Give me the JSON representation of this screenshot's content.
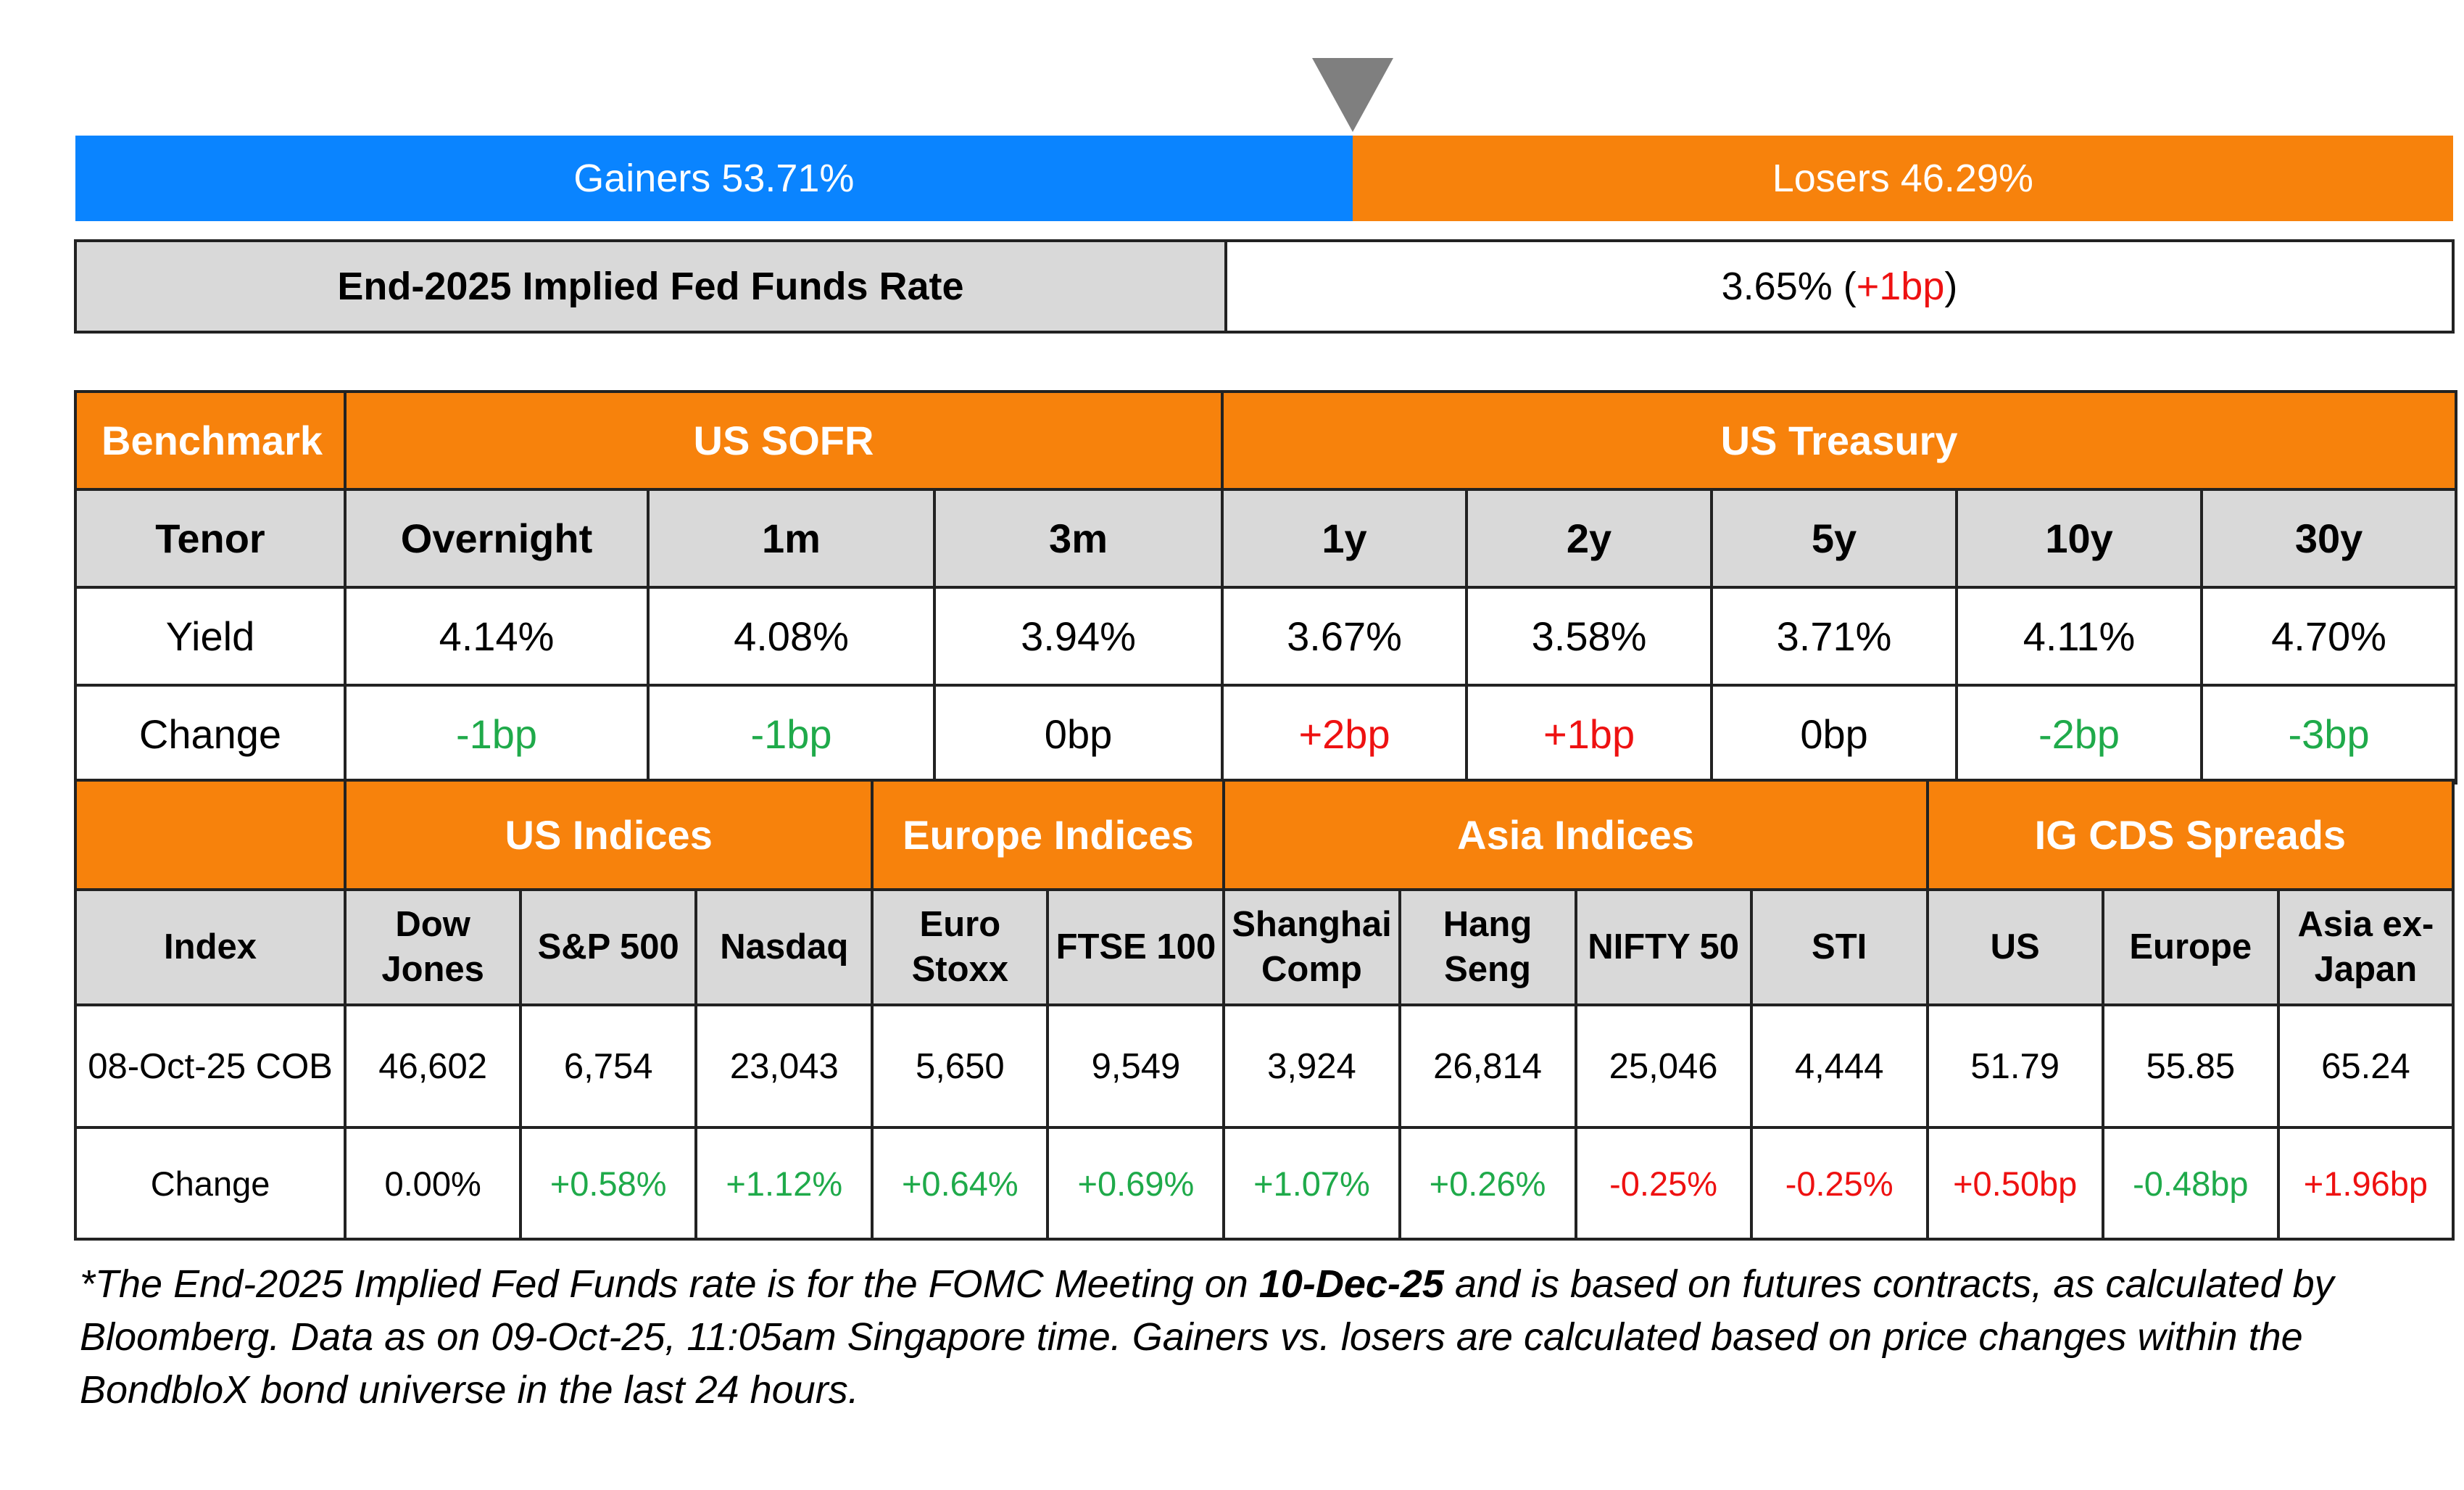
{
  "gainers_losers": {
    "gainers_label": "Gainers 53.71%",
    "losers_label": "Losers 46.29%",
    "gainers_pct": 53.71,
    "losers_pct": 46.29,
    "gainers_color": "#0a84ff",
    "losers_color": "#f7820c",
    "marker_color": "#7f7f7f"
  },
  "fed": {
    "label": "End-2025 Implied Fed Funds Rate",
    "value": "3.65% (",
    "change": "+1bp",
    "close": ")"
  },
  "rates": {
    "header": {
      "benchmark": "Benchmark",
      "sofr": "US SOFR",
      "treasury": "US Treasury"
    },
    "tenor_label": "Tenor",
    "yield_label": "Yield",
    "change_label": "Change",
    "columns": [
      {
        "tenor": "Overnight",
        "yield": "4.14%",
        "change": "-1bp",
        "direction": "down"
      },
      {
        "tenor": "1m",
        "yield": "4.08%",
        "change": "-1bp",
        "direction": "down"
      },
      {
        "tenor": "3m",
        "yield": "3.94%",
        "change": "0bp",
        "direction": "flat"
      },
      {
        "tenor": "1y",
        "yield": "3.67%",
        "change": "+2bp",
        "direction": "up"
      },
      {
        "tenor": "2y",
        "yield": "3.58%",
        "change": "+1bp",
        "direction": "up"
      },
      {
        "tenor": "5y",
        "yield": "3.71%",
        "change": "0bp",
        "direction": "flat"
      },
      {
        "tenor": "10y",
        "yield": "4.11%",
        "change": "-2bp",
        "direction": "down"
      },
      {
        "tenor": "30y",
        "yield": "4.70%",
        "change": "-3bp",
        "direction": "down"
      }
    ]
  },
  "indices": {
    "header": {
      "us": "US Indices",
      "europe": "Europe Indices",
      "asia": "Asia Indices",
      "cds": "IG CDS Spreads"
    },
    "index_label": "Index",
    "date_label": "08-Oct-25 COB",
    "change_label": "Change",
    "columns": [
      {
        "name1": "Dow",
        "name2": "Jones",
        "value": "46,602",
        "change": "0.00%",
        "tone": "neutral"
      },
      {
        "name1": "S&P 500",
        "name2": "",
        "value": "6,754",
        "change": "+0.58%",
        "tone": "green"
      },
      {
        "name1": "Nasdaq",
        "name2": "",
        "value": "23,043",
        "change": "+1.12%",
        "tone": "green"
      },
      {
        "name1": "Euro",
        "name2": "Stoxx",
        "value": "5,650",
        "change": "+0.64%",
        "tone": "green"
      },
      {
        "name1": "FTSE 100",
        "name2": "",
        "value": "9,549",
        "change": "+0.69%",
        "tone": "green"
      },
      {
        "name1": "Shanghai",
        "name2": "Comp",
        "value": "3,924",
        "change": "+1.07%",
        "tone": "green"
      },
      {
        "name1": "Hang",
        "name2": "Seng",
        "value": "26,814",
        "change": "+0.26%",
        "tone": "green"
      },
      {
        "name1": "NIFTY 50",
        "name2": "",
        "value": "25,046",
        "change": "-0.25%",
        "tone": "red"
      },
      {
        "name1": "STI",
        "name2": "",
        "value": "4,444",
        "change": "-0.25%",
        "tone": "red"
      },
      {
        "name1": "US",
        "name2": "",
        "value": "51.79",
        "change": "+0.50bp",
        "tone": "red"
      },
      {
        "name1": "Europe",
        "name2": "",
        "value": "55.85",
        "change": "-0.48bp",
        "tone": "green"
      },
      {
        "name1": "Asia ex-",
        "name2": "Japan",
        "value": "65.24",
        "change": "+1.96bp",
        "tone": "red"
      }
    ]
  },
  "footnote": {
    "part1": "*The End-2025 Implied Fed Funds rate is for the FOMC Meeting on ",
    "bold": "10-Dec-25",
    "part2": " and is based on futures contracts, as calculated by Bloomberg. Data as on 09-Oct-25, 11:05am Singapore time. Gainers vs. losers are calculated based on price changes within the BondbloX bond universe in the last 24 hours."
  },
  "colors": {
    "orange": "#f7820c",
    "grey_header": "#d9d9d9",
    "positive_green": "#1faa4a",
    "negative_red": "#ee1111"
  }
}
